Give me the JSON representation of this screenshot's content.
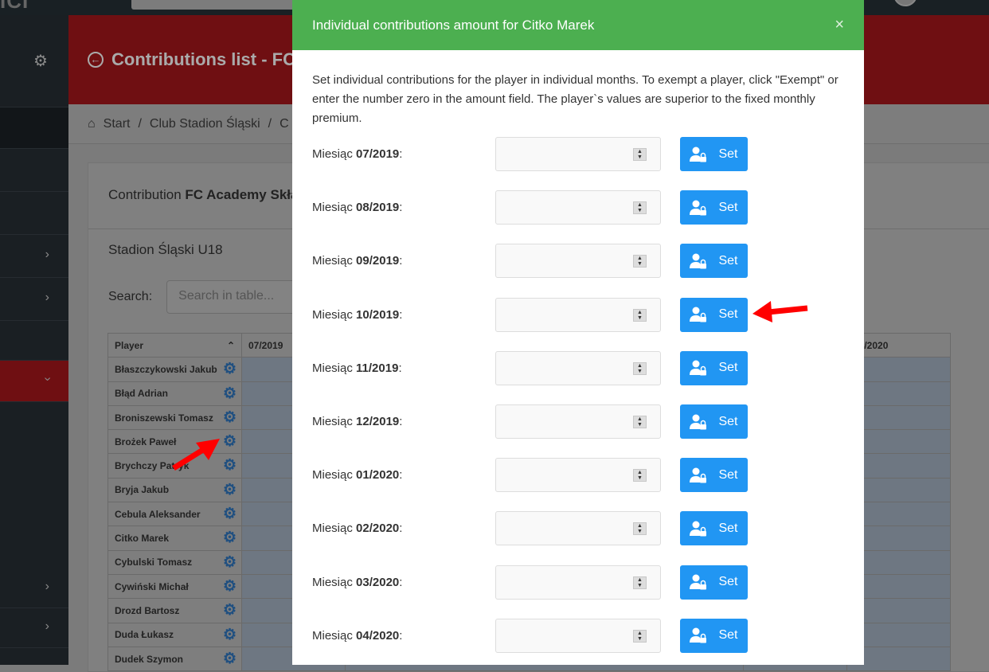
{
  "background": {
    "page_title": "Contributions list - FC A",
    "breadcrumb": [
      "Start",
      "Club Stadion Śląski",
      "C"
    ],
    "card_title_prefix": "Contribution",
    "card_title_bold": "FC Academy Skła",
    "team": "Stadion Śląski U18",
    "search_label": "Search:",
    "search_placeholder": "Search in table...",
    "table": {
      "columns": [
        "Player",
        "07/2019",
        "20",
        "04/2020"
      ],
      "players": [
        "Błaszczykowski Jakub",
        "Błąd Adrian",
        "Broniszewski Tomasz",
        "Brożek Paweł",
        "Brychczy Patryk",
        "Bryja Jakub",
        "Cebula Aleksander",
        "Citko Marek",
        "Cybulski Tomasz",
        "Cywiński Michał",
        "Drozd Bartosz",
        "Duda Łukasz",
        "Dudek Szymon"
      ]
    }
  },
  "modal": {
    "title": "Individual contributions amount for Citko Marek",
    "close": "×",
    "description": "Set individual contributions for the player in individual months. To exempt a player, click \"Exempt\" or enter the number zero in the amount field. The player`s values are superior to the fixed monthly premium.",
    "label_prefix": "Miesiąc",
    "button_label": "Set",
    "months": [
      "07/2019",
      "08/2019",
      "09/2019",
      "10/2019",
      "11/2019",
      "12/2019",
      "01/2020",
      "02/2020",
      "03/2020",
      "04/2020"
    ]
  },
  "colors": {
    "header": "#4caf50",
    "button": "#2196f3",
    "annotation_arrow": "#ff0000"
  }
}
